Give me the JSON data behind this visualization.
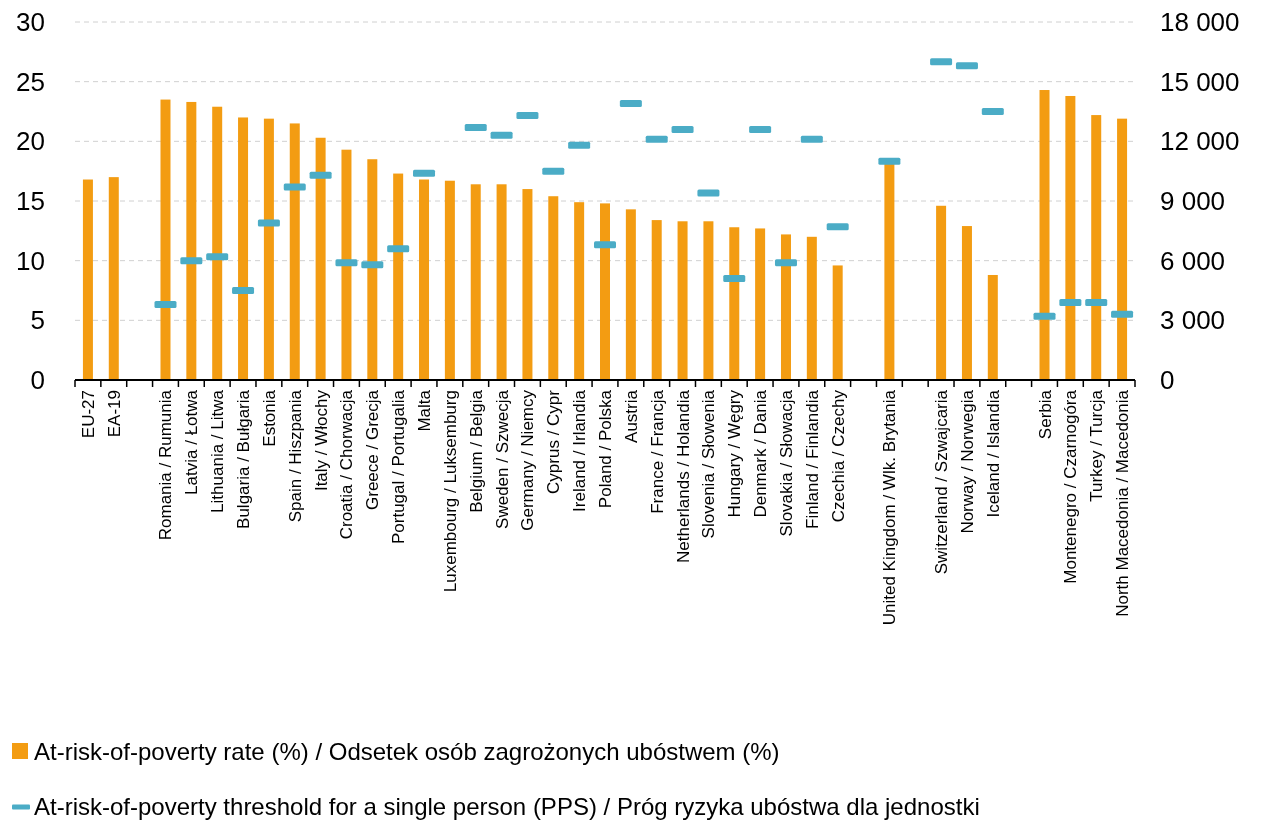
{
  "chart_data": {
    "type": "bar",
    "categories": [
      "EU-27",
      "EA-19",
      null,
      "Romania / Rumunia",
      "Latvia / Łotwa",
      "Lithuania / Litwa",
      "Bulgaria / Bułgaria",
      "Estonia",
      "Spain / Hiszpania",
      "Italy / Włochy",
      "Croatia / Chorwacja",
      "Greece / Grecja",
      "Portugal / Portugalia",
      "Malta",
      "Luxembourg / Luksemburg",
      "Belgium / Belgia",
      "Sweden / Szwecja",
      "Germany / Niemcy",
      "Cyprus / Cypr",
      "Ireland / Irlandia",
      "Poland / Polska",
      "Austria",
      "France / Francja",
      "Netherlands / Holandia",
      "Slovenia / Słowenia",
      "Hungary / Węgry",
      "Denmark / Dania",
      "Slovakia / Słowacja",
      "Finland / Finlandia",
      "Czechia / Czechy",
      null,
      "United Kingdom / Wlk. Brytania",
      null,
      "Switzerland / Szwajcaria",
      "Norway / Norwegia",
      "Iceland / Islandia",
      null,
      "Serbia",
      "Montenegro / Czarnogóra",
      "Turkey / Turcja",
      "North Macedonia / Macedonia"
    ],
    "series": [
      {
        "name": "At-risk-of-poverty rate (%) / Odsetek osób zagrożonych ubóstwem (%)",
        "color": "#f39c12",
        "values": [
          16.8,
          17.0,
          null,
          23.5,
          23.3,
          22.9,
          22.0,
          21.9,
          21.5,
          20.3,
          19.3,
          18.5,
          17.3,
          16.8,
          16.7,
          16.4,
          16.4,
          16.0,
          15.4,
          14.9,
          14.8,
          14.3,
          13.4,
          13.3,
          13.3,
          12.8,
          12.7,
          12.2,
          12.0,
          9.6,
          null,
          18.1,
          null,
          14.6,
          12.9,
          8.8,
          null,
          24.3,
          23.8,
          22.2,
          21.9
        ]
      },
      {
        "name": "At-risk-of-poverty threshold for a single person (PPS) / Próg ryzyka ubóstwa dla jednostki",
        "type": "scatter",
        "axis": "y2",
        "color": "#4bacc6",
        "values": [
          null,
          null,
          null,
          3800,
          6000,
          6200,
          4500,
          7900,
          9700,
          10300,
          5900,
          5800,
          6600,
          10400,
          null,
          12700,
          12300,
          13300,
          10500,
          11800,
          6800,
          13900,
          12100,
          12600,
          9400,
          5100,
          12600,
          5900,
          12100,
          7700,
          null,
          11000,
          null,
          16000,
          15800,
          13500,
          null,
          3200,
          3900,
          3900,
          3300
        ]
      }
    ],
    "ylim": [
      0,
      30
    ],
    "yticks": [
      0,
      5,
      10,
      15,
      20,
      25,
      30
    ],
    "y2lim": [
      0,
      18000
    ],
    "y2ticks": [
      0,
      {
        "value": 3000,
        "label": "3 000"
      },
      {
        "value": 6000,
        "label": "6 000"
      },
      {
        "value": 9000,
        "label": "9 000"
      },
      {
        "value": 12000,
        "label": "12 000"
      },
      {
        "value": 15000,
        "label": "15 000"
      },
      {
        "value": 18000,
        "label": "18 000"
      }
    ],
    "grid": "y",
    "legend": "bottom"
  }
}
